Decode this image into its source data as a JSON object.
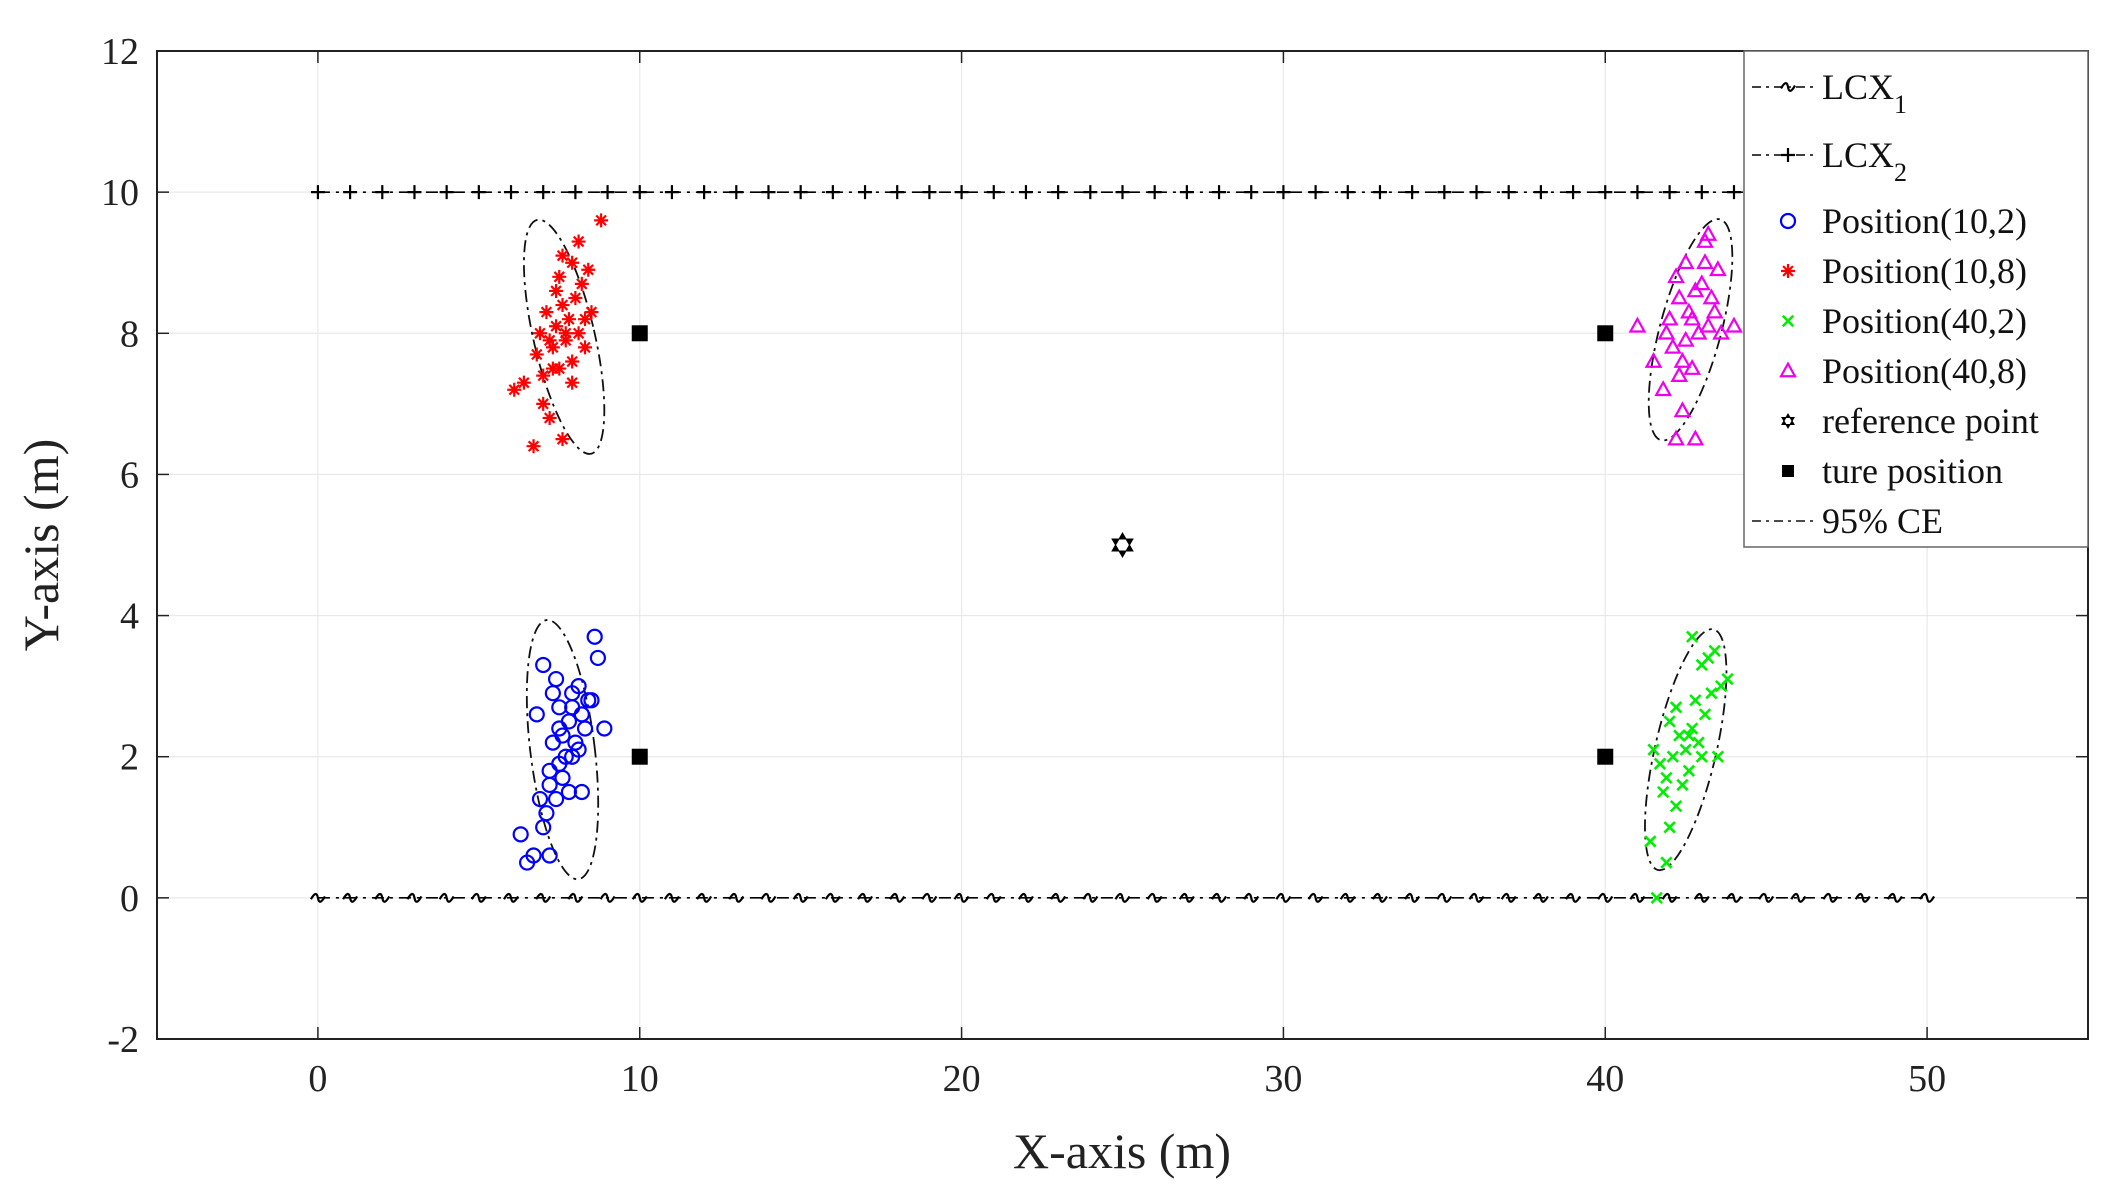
{
  "chart_data": {
    "type": "scatter",
    "title": "",
    "xlabel": "X-axis (m)",
    "ylabel": "Y-axis (m)",
    "xlim": [
      -5,
      55
    ],
    "ylim": [
      -2,
      12
    ],
    "xticks": [
      "0",
      "10",
      "20",
      "30",
      "40",
      "50"
    ],
    "yticks": [
      "-2",
      "0",
      "2",
      "4",
      "6",
      "8",
      "10",
      "12"
    ],
    "xtick_values": [
      0,
      10,
      20,
      30,
      40,
      50
    ],
    "ytick_values": [
      -2,
      0,
      2,
      4,
      6,
      8,
      10,
      12
    ],
    "grid": true,
    "legend_position": "top-right",
    "lines": [
      {
        "name": "LCX1",
        "legend_main": "LCX",
        "legend_sub": "1",
        "y": 0,
        "x_start": 0,
        "x_end": 50,
        "color": "#000000",
        "marker": "scribble"
      },
      {
        "name": "LCX2",
        "legend_main": "LCX",
        "legend_sub": "2",
        "y": 10,
        "x_start": 0,
        "x_end": 50,
        "color": "#000000",
        "marker": "plus"
      }
    ],
    "series": [
      {
        "name": "Position(10,2)",
        "color": "#0000ff",
        "marker": "circle",
        "points": [
          [
            6.5,
            0.5
          ],
          [
            6.7,
            0.6
          ],
          [
            7.2,
            0.6
          ],
          [
            6.3,
            0.9
          ],
          [
            7.0,
            1.0
          ],
          [
            7.1,
            1.2
          ],
          [
            7.4,
            1.4
          ],
          [
            7.8,
            1.5
          ],
          [
            7.2,
            1.6
          ],
          [
            7.6,
            1.7
          ],
          [
            7.5,
            1.9
          ],
          [
            7.9,
            2.0
          ],
          [
            8.1,
            2.1
          ],
          [
            7.3,
            2.2
          ],
          [
            7.6,
            2.3
          ],
          [
            8.3,
            2.4
          ],
          [
            7.8,
            2.5
          ],
          [
            8.2,
            2.6
          ],
          [
            7.5,
            2.7
          ],
          [
            8.4,
            2.8
          ],
          [
            7.9,
            2.9
          ],
          [
            8.1,
            3.0
          ],
          [
            7.4,
            3.1
          ],
          [
            8.7,
            3.4
          ],
          [
            8.6,
            3.7
          ],
          [
            7.0,
            3.3
          ],
          [
            6.8,
            2.6
          ],
          [
            7.7,
            2.0
          ],
          [
            8.0,
            2.2
          ],
          [
            8.9,
            2.4
          ],
          [
            7.2,
            1.8
          ],
          [
            7.5,
            2.4
          ],
          [
            8.2,
            1.5
          ],
          [
            7.9,
            2.7
          ],
          [
            6.9,
            1.4
          ],
          [
            7.3,
            2.9
          ],
          [
            8.5,
            2.8
          ]
        ],
        "ellipse": {
          "cx": 7.6,
          "cy": 2.1,
          "rx": 1.0,
          "ry": 1.85,
          "rot_deg": -7
        }
      },
      {
        "name": "Position(10,8)",
        "color": "#ff0000",
        "marker": "asterisk",
        "points": [
          [
            6.7,
            6.4
          ],
          [
            7.6,
            6.5
          ],
          [
            7.2,
            6.8
          ],
          [
            6.1,
            7.2
          ],
          [
            6.4,
            7.3
          ],
          [
            7.0,
            7.4
          ],
          [
            7.5,
            7.5
          ],
          [
            7.9,
            7.6
          ],
          [
            6.8,
            7.7
          ],
          [
            7.3,
            7.8
          ],
          [
            7.7,
            7.9
          ],
          [
            8.1,
            8.0
          ],
          [
            7.4,
            8.1
          ],
          [
            7.8,
            8.2
          ],
          [
            8.3,
            8.2
          ],
          [
            7.1,
            8.3
          ],
          [
            7.6,
            8.4
          ],
          [
            8.0,
            8.5
          ],
          [
            8.2,
            8.7
          ],
          [
            7.5,
            8.8
          ],
          [
            7.9,
            9.0
          ],
          [
            7.6,
            9.1
          ],
          [
            8.1,
            9.3
          ],
          [
            8.8,
            9.6
          ],
          [
            8.4,
            8.9
          ],
          [
            7.2,
            7.9
          ],
          [
            7.9,
            7.3
          ],
          [
            6.9,
            8.0
          ],
          [
            8.3,
            7.8
          ],
          [
            7.4,
            8.6
          ],
          [
            7.0,
            7.0
          ],
          [
            8.5,
            8.3
          ],
          [
            7.7,
            8.0
          ],
          [
            7.3,
            7.5
          ]
        ],
        "ellipse": {
          "cx": 7.65,
          "cy": 7.95,
          "rx": 0.95,
          "ry": 1.7,
          "rot_deg": -13
        }
      },
      {
        "name": "Position(40,2)",
        "color": "#00ee00",
        "marker": "x",
        "points": [
          [
            41.6,
            0.0
          ],
          [
            41.9,
            0.5
          ],
          [
            41.4,
            0.8
          ],
          [
            42.0,
            1.0
          ],
          [
            42.2,
            1.3
          ],
          [
            41.8,
            1.5
          ],
          [
            42.4,
            1.6
          ],
          [
            42.6,
            1.8
          ],
          [
            41.7,
            1.9
          ],
          [
            42.1,
            2.0
          ],
          [
            42.5,
            2.1
          ],
          [
            42.9,
            2.2
          ],
          [
            42.3,
            2.3
          ],
          [
            42.7,
            2.4
          ],
          [
            43.1,
            2.6
          ],
          [
            42.0,
            2.5
          ],
          [
            42.8,
            2.8
          ],
          [
            43.3,
            2.9
          ],
          [
            43.6,
            3.0
          ],
          [
            43.8,
            3.1
          ],
          [
            43.2,
            3.4
          ],
          [
            43.0,
            3.3
          ],
          [
            43.4,
            3.5
          ],
          [
            42.7,
            3.7
          ],
          [
            41.5,
            2.1
          ],
          [
            42.2,
            2.7
          ],
          [
            43.5,
            2.0
          ],
          [
            41.9,
            1.7
          ],
          [
            42.6,
            2.3
          ],
          [
            43.0,
            2.0
          ]
        ],
        "ellipse": {
          "cx": 42.5,
          "cy": 2.1,
          "rx": 0.95,
          "ry": 1.75,
          "rot_deg": 13
        }
      },
      {
        "name": "Position(40,8)",
        "color": "#ee00ee",
        "marker": "triangle",
        "points": [
          [
            42.2,
            6.5
          ],
          [
            42.8,
            6.5
          ],
          [
            42.4,
            6.9
          ],
          [
            41.8,
            7.2
          ],
          [
            42.3,
            7.4
          ],
          [
            42.7,
            7.5
          ],
          [
            41.5,
            7.6
          ],
          [
            42.1,
            7.8
          ],
          [
            42.5,
            7.9
          ],
          [
            41.0,
            8.1
          ],
          [
            42.9,
            8.0
          ],
          [
            43.2,
            8.1
          ],
          [
            44.0,
            8.1
          ],
          [
            42.0,
            8.2
          ],
          [
            42.6,
            8.3
          ],
          [
            43.4,
            8.3
          ],
          [
            42.3,
            8.5
          ],
          [
            42.8,
            8.6
          ],
          [
            43.0,
            8.7
          ],
          [
            43.5,
            8.9
          ],
          [
            42.5,
            9.0
          ],
          [
            43.1,
            9.0
          ],
          [
            43.2,
            9.4
          ],
          [
            43.1,
            9.3
          ],
          [
            42.2,
            8.8
          ],
          [
            42.7,
            8.2
          ],
          [
            41.9,
            8.0
          ],
          [
            43.3,
            8.5
          ],
          [
            42.4,
            7.6
          ],
          [
            43.6,
            8.0
          ]
        ],
        "ellipse": {
          "cx": 42.65,
          "cy": 8.05,
          "rx": 0.95,
          "ry": 1.62,
          "rot_deg": 15
        }
      }
    ],
    "reference_point": {
      "name": "reference point",
      "x": 25,
      "y": 5,
      "color": "#000000",
      "marker": "hexagram"
    },
    "true_positions": {
      "name": "ture position",
      "color": "#000000",
      "marker": "square",
      "points": [
        [
          10,
          2
        ],
        [
          10,
          8
        ],
        [
          40,
          2
        ],
        [
          40,
          8
        ]
      ]
    },
    "ce_label": "95% CE"
  }
}
